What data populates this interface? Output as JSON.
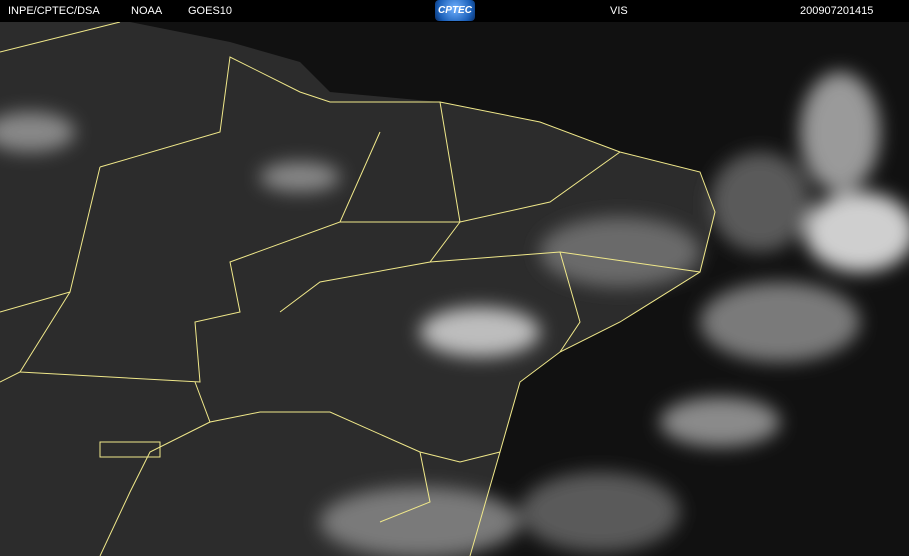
{
  "header": {
    "source": "INPE/CPTEC/DSA",
    "agency": "NOAA",
    "satellite": "GOES10",
    "logo_text": "CPTEC",
    "channel": "VIS",
    "timestamp": "200907201415"
  },
  "colors": {
    "background": "#000000",
    "land": "#2e2e2e",
    "ocean": "#0e0e0e",
    "borders": "#f0e88a",
    "clouds": "#d8d8d8"
  }
}
